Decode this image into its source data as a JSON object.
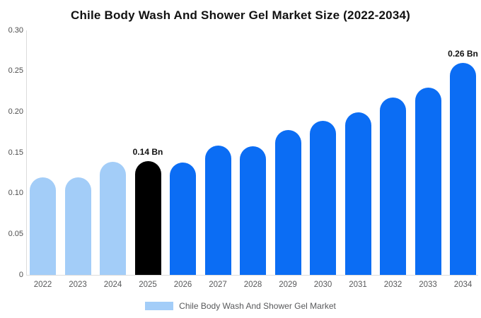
{
  "chart_data": {
    "type": "bar",
    "title": "Chile Body Wash And Shower Gel Market Size (2022-2034)",
    "unit": "Bn",
    "categories": [
      "2022",
      "2023",
      "2024",
      "2025",
      "2026",
      "2027",
      "2028",
      "2029",
      "2030",
      "2031",
      "2032",
      "2033",
      "2034"
    ],
    "values": [
      0.12,
      0.12,
      0.139,
      0.14,
      0.138,
      0.159,
      0.158,
      0.178,
      0.189,
      0.199,
      0.218,
      0.23,
      0.26
    ],
    "segments": [
      "historical",
      "historical",
      "historical",
      "base_year",
      "forecast",
      "forecast",
      "forecast",
      "forecast",
      "forecast",
      "forecast",
      "forecast",
      "forecast",
      "forecast"
    ],
    "colors": {
      "historical": "#a3cdf8",
      "base_year": "#000000",
      "forecast": "#0b6df4"
    },
    "ylim": [
      0,
      0.3
    ],
    "yticks": [
      "0",
      "0.05",
      "0.10",
      "0.15",
      "0.20",
      "0.25",
      "0.30"
    ],
    "grid": false,
    "annotations": [
      {
        "category": "2025",
        "label": "0.14 Bn"
      },
      {
        "category": "2034",
        "label": "0.26 Bn"
      }
    ],
    "legend_position": "bottom",
    "legend": [
      {
        "label": "Chile Body Wash And Shower Gel Market",
        "color": "#a3cdf8"
      }
    ]
  }
}
